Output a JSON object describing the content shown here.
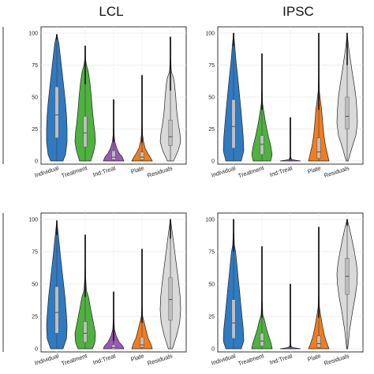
{
  "column_titles": [
    "LCL",
    "IPSC"
  ],
  "colors": {
    "Individual": "#2f7bc2",
    "Treatment": "#4db33e",
    "Ind:Treat": "#9b59b6",
    "Plate": "#f47c1c",
    "Residuals": "#d9d9d9",
    "box": "#bfbfbf",
    "outline": "#222222"
  },
  "chart_data": [
    {
      "type": "violin",
      "panel": "top-left",
      "title": "LCL",
      "categories": [
        "Individual",
        "Treatment",
        "Ind:Treat",
        "Plate",
        "Residuals"
      ],
      "yticks": [
        0,
        25,
        50,
        75,
        100
      ],
      "ylim": [
        0,
        100
      ],
      "grid": true,
      "series": [
        {
          "category": "Individual",
          "max": 99,
          "q1": 18,
          "median": 36,
          "q3": 58,
          "whisker": 95,
          "density": [
            [
              0,
              0.6
            ],
            [
              5,
              0.85
            ],
            [
              15,
              1.0
            ],
            [
              25,
              1.0
            ],
            [
              35,
              0.95
            ],
            [
              45,
              0.85
            ],
            [
              55,
              0.72
            ],
            [
              65,
              0.58
            ],
            [
              75,
              0.44
            ],
            [
              85,
              0.3
            ],
            [
              92,
              0.2
            ],
            [
              99,
              0
            ]
          ]
        },
        {
          "category": "Treatment",
          "max": 90,
          "q1": 11,
          "median": 22,
          "q3": 35,
          "whisker": 60,
          "density": [
            [
              0,
              0.55
            ],
            [
              8,
              0.85
            ],
            [
              15,
              1.0
            ],
            [
              22,
              0.95
            ],
            [
              30,
              0.82
            ],
            [
              40,
              0.7
            ],
            [
              50,
              0.6
            ],
            [
              60,
              0.48
            ],
            [
              70,
              0.3
            ],
            [
              75,
              0.12
            ],
            [
              80,
              0.03
            ],
            [
              90,
              0
            ]
          ]
        },
        {
          "category": "Ind:Treat",
          "max": 48,
          "q1": 1,
          "median": 3,
          "q3": 8,
          "whisker": 15,
          "density": [
            [
              0,
              1.0
            ],
            [
              3,
              0.85
            ],
            [
              6,
              0.55
            ],
            [
              10,
              0.3
            ],
            [
              15,
              0.12
            ],
            [
              20,
              0.05
            ],
            [
              30,
              0.02
            ],
            [
              48,
              0
            ]
          ]
        },
        {
          "category": "Plate",
          "max": 67,
          "q1": 1,
          "median": 3,
          "q3": 7,
          "whisker": 14,
          "density": [
            [
              0,
              1.0
            ],
            [
              3,
              0.8
            ],
            [
              6,
              0.55
            ],
            [
              10,
              0.3
            ],
            [
              15,
              0.15
            ],
            [
              20,
              0.06
            ],
            [
              30,
              0.02
            ],
            [
              67,
              0
            ]
          ]
        },
        {
          "category": "Residuals",
          "max": 97,
          "q1": 12,
          "median": 19,
          "q3": 32,
          "whisker": 55,
          "density": [
            [
              0,
              0.3
            ],
            [
              8,
              0.75
            ],
            [
              15,
              1.0
            ],
            [
              22,
              0.92
            ],
            [
              30,
              0.75
            ],
            [
              40,
              0.6
            ],
            [
              50,
              0.52
            ],
            [
              60,
              0.4
            ],
            [
              65,
              0.3
            ],
            [
              70,
              0.08
            ],
            [
              80,
              0.03
            ],
            [
              97,
              0
            ]
          ]
        }
      ]
    },
    {
      "type": "violin",
      "panel": "top-right",
      "title": "IPSC",
      "categories": [
        "Individual",
        "Treatment",
        "Ind:Treat",
        "Plate",
        "Residuals"
      ],
      "yticks": [
        0,
        25,
        50,
        75,
        100
      ],
      "ylim": [
        0,
        100
      ],
      "grid": true,
      "series": [
        {
          "category": "Individual",
          "max": 100,
          "q1": 10,
          "median": 27,
          "q3": 48,
          "whisker": 90,
          "density": [
            [
              0,
              0.75
            ],
            [
              8,
              1.0
            ],
            [
              18,
              0.95
            ],
            [
              28,
              0.85
            ],
            [
              40,
              0.72
            ],
            [
              50,
              0.6
            ],
            [
              60,
              0.48
            ],
            [
              70,
              0.35
            ],
            [
              80,
              0.22
            ],
            [
              90,
              0.12
            ],
            [
              100,
              0
            ]
          ]
        },
        {
          "category": "Treatment",
          "max": 84,
          "q1": 5,
          "median": 13,
          "q3": 20,
          "whisker": 40,
          "density": [
            [
              0,
              0.85
            ],
            [
              5,
              1.0
            ],
            [
              12,
              0.85
            ],
            [
              20,
              0.6
            ],
            [
              30,
              0.35
            ],
            [
              40,
              0.15
            ],
            [
              45,
              0.06
            ],
            [
              60,
              0.02
            ],
            [
              84,
              0
            ]
          ]
        },
        {
          "category": "Ind:Treat",
          "max": 34,
          "q1": 0,
          "median": 0,
          "q3": 0.5,
          "whisker": 1,
          "density": [
            [
              0,
              1.0
            ],
            [
              1,
              0.15
            ],
            [
              3,
              0.03
            ],
            [
              34,
              0
            ]
          ]
        },
        {
          "category": "Plate",
          "max": 100,
          "q1": 2,
          "median": 7,
          "q3": 18,
          "whisker": 40,
          "density": [
            [
              0,
              1.0
            ],
            [
              5,
              0.85
            ],
            [
              12,
              0.65
            ],
            [
              20,
              0.5
            ],
            [
              30,
              0.38
            ],
            [
              40,
              0.28
            ],
            [
              48,
              0.15
            ],
            [
              55,
              0.05
            ],
            [
              70,
              0.02
            ],
            [
              100,
              0
            ]
          ]
        },
        {
          "category": "Residuals",
          "max": 100,
          "q1": 25,
          "median": 35,
          "q3": 50,
          "whisker": 75,
          "density": [
            [
              0,
              0.1
            ],
            [
              10,
              0.45
            ],
            [
              20,
              0.85
            ],
            [
              30,
              1.0
            ],
            [
              40,
              0.95
            ],
            [
              50,
              0.85
            ],
            [
              60,
              0.68
            ],
            [
              70,
              0.48
            ],
            [
              80,
              0.3
            ],
            [
              90,
              0.12
            ],
            [
              100,
              0
            ]
          ]
        }
      ]
    },
    {
      "type": "violin",
      "panel": "bottom-left",
      "title": "",
      "categories": [
        "Individual",
        "Treatment",
        "Ind:Treat",
        "Plate",
        "Residuals"
      ],
      "yticks": [
        0,
        25,
        50,
        75,
        100
      ],
      "ylim": [
        0,
        100
      ],
      "grid": true,
      "series": [
        {
          "category": "Individual",
          "max": 99,
          "q1": 12,
          "median": 28,
          "q3": 48,
          "whisker": 88,
          "density": [
            [
              0,
              0.6
            ],
            [
              8,
              0.95
            ],
            [
              18,
              1.0
            ],
            [
              28,
              0.92
            ],
            [
              40,
              0.8
            ],
            [
              50,
              0.66
            ],
            [
              60,
              0.52
            ],
            [
              70,
              0.38
            ],
            [
              80,
              0.25
            ],
            [
              90,
              0.12
            ],
            [
              99,
              0
            ]
          ]
        },
        {
          "category": "Treatment",
          "max": 88,
          "q1": 5,
          "median": 12,
          "q3": 21,
          "whisker": 40,
          "density": [
            [
              0,
              0.7
            ],
            [
              5,
              0.95
            ],
            [
              12,
              1.0
            ],
            [
              20,
              0.8
            ],
            [
              30,
              0.55
            ],
            [
              40,
              0.32
            ],
            [
              45,
              0.12
            ],
            [
              55,
              0.04
            ],
            [
              88,
              0
            ]
          ]
        },
        {
          "category": "Ind:Treat",
          "max": 44,
          "q1": 0,
          "median": 1,
          "q3": 3,
          "whisker": 6,
          "density": [
            [
              0,
              1.0
            ],
            [
              2,
              0.9
            ],
            [
              5,
              0.55
            ],
            [
              10,
              0.25
            ],
            [
              15,
              0.08
            ],
            [
              25,
              0.02
            ],
            [
              44,
              0
            ]
          ]
        },
        {
          "category": "Plate",
          "max": 77,
          "q1": 1,
          "median": 3,
          "q3": 9,
          "whisker": 20,
          "density": [
            [
              0,
              1.0
            ],
            [
              4,
              0.85
            ],
            [
              8,
              0.6
            ],
            [
              14,
              0.4
            ],
            [
              20,
              0.22
            ],
            [
              25,
              0.06
            ],
            [
              35,
              0.02
            ],
            [
              77,
              0
            ]
          ]
        },
        {
          "category": "Residuals",
          "max": 100,
          "q1": 22,
          "median": 38,
          "q3": 55,
          "whisker": 85,
          "density": [
            [
              0,
              0.2
            ],
            [
              10,
              0.6
            ],
            [
              20,
              0.9
            ],
            [
              30,
              1.0
            ],
            [
              40,
              0.95
            ],
            [
              50,
              0.82
            ],
            [
              60,
              0.66
            ],
            [
              70,
              0.5
            ],
            [
              80,
              0.34
            ],
            [
              90,
              0.18
            ],
            [
              100,
              0
            ]
          ]
        }
      ]
    },
    {
      "type": "violin",
      "panel": "bottom-right",
      "title": "",
      "categories": [
        "Individual",
        "Treatment",
        "Ind:Treat",
        "Plate",
        "Residuals"
      ],
      "yticks": [
        0,
        25,
        50,
        75,
        100
      ],
      "ylim": [
        0,
        100
      ],
      "grid": true,
      "series": [
        {
          "category": "Individual",
          "max": 100,
          "q1": 8,
          "median": 20,
          "q3": 38,
          "whisker": 75,
          "density": [
            [
              0,
              0.75
            ],
            [
              6,
              1.0
            ],
            [
              15,
              0.95
            ],
            [
              25,
              0.82
            ],
            [
              35,
              0.7
            ],
            [
              45,
              0.58
            ],
            [
              55,
              0.45
            ],
            [
              65,
              0.33
            ],
            [
              75,
              0.2
            ],
            [
              80,
              0.08
            ],
            [
              90,
              0.03
            ],
            [
              100,
              0
            ]
          ]
        },
        {
          "category": "Treatment",
          "max": 79,
          "q1": 2,
          "median": 6,
          "q3": 12,
          "whisker": 24,
          "density": [
            [
              0,
              1.0
            ],
            [
              4,
              0.9
            ],
            [
              10,
              0.65
            ],
            [
              16,
              0.42
            ],
            [
              22,
              0.25
            ],
            [
              26,
              0.08
            ],
            [
              40,
              0.02
            ],
            [
              79,
              0
            ]
          ]
        },
        {
          "category": "Ind:Treat",
          "max": 50,
          "q1": 0,
          "median": 0,
          "q3": 0.5,
          "whisker": 1,
          "density": [
            [
              0,
              1.0
            ],
            [
              1,
              0.12
            ],
            [
              3,
              0.03
            ],
            [
              50,
              0
            ]
          ]
        },
        {
          "category": "Plate",
          "max": 94,
          "q1": 1,
          "median": 4,
          "q3": 10,
          "whisker": 24,
          "density": [
            [
              0,
              1.0
            ],
            [
              4,
              0.8
            ],
            [
              10,
              0.55
            ],
            [
              18,
              0.35
            ],
            [
              25,
              0.2
            ],
            [
              32,
              0.06
            ],
            [
              45,
              0.02
            ],
            [
              94,
              0
            ]
          ]
        },
        {
          "category": "Residuals",
          "max": 100,
          "q1": 42,
          "median": 56,
          "q3": 70,
          "whisker": 95,
          "density": [
            [
              0,
              0.05
            ],
            [
              15,
              0.25
            ],
            [
              30,
              0.55
            ],
            [
              40,
              0.78
            ],
            [
              50,
              0.95
            ],
            [
              58,
              1.0
            ],
            [
              66,
              0.9
            ],
            [
              75,
              0.7
            ],
            [
              85,
              0.45
            ],
            [
              94,
              0.2
            ],
            [
              100,
              0
            ]
          ]
        }
      ]
    }
  ]
}
